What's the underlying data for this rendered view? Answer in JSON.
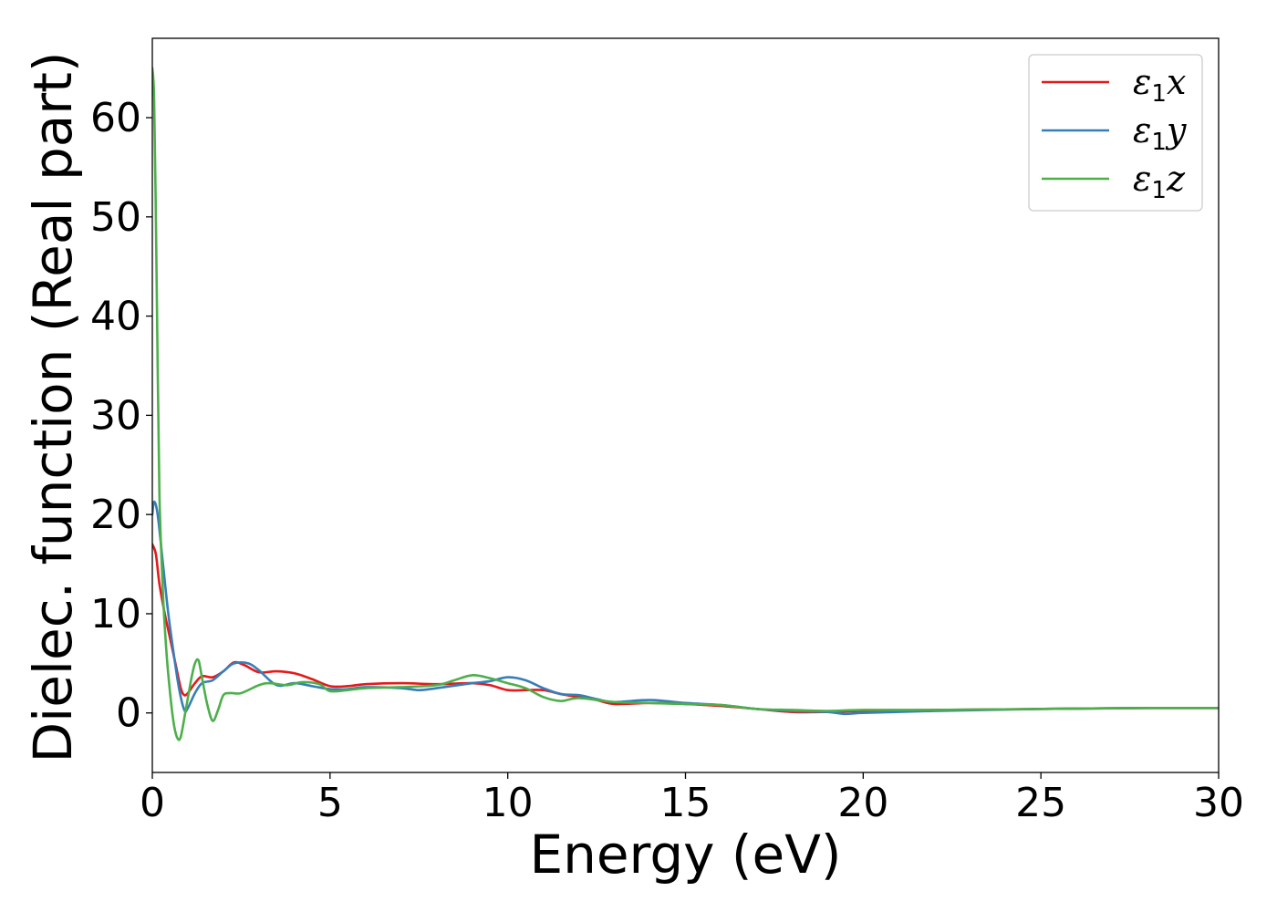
{
  "chart_data": {
    "type": "line",
    "title": "",
    "xlabel": "Energy (eV)",
    "ylabel": "Dielec. function (Real part)",
    "xlim": [
      0,
      30
    ],
    "ylim": [
      -6,
      68
    ],
    "xticks": [
      0,
      5,
      10,
      15,
      20,
      25,
      30
    ],
    "yticks": [
      0,
      10,
      20,
      30,
      40,
      50,
      60
    ],
    "grid": false,
    "legend_position": "top-right",
    "series": [
      {
        "name": "ε1x",
        "legend_base": "ε",
        "legend_sub": "1",
        "legend_suffix": "x",
        "color": "#e41a1c",
        "x": [
          0,
          0.1,
          0.2,
          0.35,
          0.5,
          0.65,
          0.8,
          0.9,
          1.0,
          1.2,
          1.4,
          1.7,
          2.0,
          2.3,
          2.6,
          3.0,
          3.5,
          4.0,
          4.5,
          5.0,
          5.5,
          6.0,
          7.0,
          8.0,
          9.0,
          9.5,
          10.0,
          10.5,
          11.0,
          11.5,
          12.0,
          12.5,
          13.0,
          14.0,
          15.0,
          16.0,
          17.0,
          18.0,
          19.0,
          20.0,
          22.0,
          25.0,
          28.0,
          30.0
        ],
        "y": [
          17.0,
          16.0,
          13.0,
          10.0,
          7.5,
          5.0,
          2.5,
          1.8,
          2.0,
          3.0,
          3.7,
          3.6,
          4.2,
          5.1,
          4.8,
          4.1,
          4.2,
          4.0,
          3.4,
          2.7,
          2.7,
          2.9,
          3.0,
          2.9,
          3.0,
          2.8,
          2.3,
          2.3,
          2.3,
          1.9,
          1.6,
          1.3,
          0.9,
          1.0,
          0.9,
          0.7,
          0.4,
          0.1,
          0.1,
          0.2,
          0.3,
          0.4,
          0.5,
          0.5
        ]
      },
      {
        "name": "ε1y",
        "legend_base": "ε",
        "legend_sub": "1",
        "legend_suffix": "y",
        "color": "#377eb8",
        "x": [
          0,
          0.05,
          0.15,
          0.3,
          0.45,
          0.6,
          0.75,
          0.9,
          1.0,
          1.2,
          1.4,
          1.7,
          2.0,
          2.3,
          2.7,
          3.0,
          3.5,
          4.0,
          4.5,
          5.0,
          5.5,
          6.0,
          7.0,
          7.5,
          8.0,
          9.0,
          9.5,
          10.0,
          10.5,
          11.0,
          11.5,
          12.0,
          12.5,
          13.0,
          14.0,
          15.0,
          16.0,
          17.0,
          18.0,
          19.0,
          19.5,
          20.0,
          22.0,
          25.0,
          28.0,
          30.0
        ],
        "y": [
          20.0,
          21.3,
          20.0,
          15.0,
          10.0,
          6.0,
          2.5,
          0.3,
          0.5,
          2.0,
          3.0,
          3.3,
          4.2,
          5.0,
          5.0,
          4.3,
          2.8,
          3.0,
          2.7,
          2.4,
          2.4,
          2.6,
          2.5,
          2.3,
          2.5,
          3.0,
          3.2,
          3.6,
          3.3,
          2.5,
          1.9,
          1.8,
          1.4,
          1.1,
          1.3,
          1.0,
          0.8,
          0.4,
          0.2,
          0.1,
          -0.1,
          0.0,
          0.2,
          0.4,
          0.5,
          0.5
        ]
      },
      {
        "name": "ε1z",
        "legend_base": "ε",
        "legend_sub": "1",
        "legend_suffix": "z",
        "color": "#4daf4a",
        "x": [
          0,
          0.05,
          0.1,
          0.15,
          0.2,
          0.3,
          0.4,
          0.5,
          0.6,
          0.7,
          0.8,
          0.95,
          1.1,
          1.2,
          1.3,
          1.4,
          1.55,
          1.7,
          1.85,
          2.0,
          2.2,
          2.5,
          3.0,
          3.3,
          3.8,
          4.2,
          4.7,
          5.0,
          5.5,
          6.0,
          7.0,
          8.0,
          8.5,
          9.0,
          9.5,
          10.0,
          10.5,
          11.0,
          11.5,
          12.0,
          13.0,
          14.0,
          15.0,
          16.0,
          17.0,
          18.0,
          19.0,
          20.0,
          22.0,
          25.0,
          28.0,
          30.0
        ],
        "y": [
          65.0,
          62.0,
          50.0,
          35.0,
          22.0,
          12.0,
          6.0,
          2.0,
          -1.0,
          -2.5,
          -2.4,
          0.5,
          3.5,
          5.0,
          5.3,
          3.5,
          0.8,
          -0.8,
          0.3,
          1.8,
          2.0,
          2.0,
          2.8,
          3.0,
          2.8,
          3.1,
          2.9,
          2.2,
          2.3,
          2.5,
          2.6,
          2.8,
          3.3,
          3.8,
          3.5,
          3.0,
          2.5,
          1.6,
          1.2,
          1.5,
          1.1,
          1.0,
          0.9,
          0.8,
          0.4,
          0.3,
          0.2,
          0.3,
          0.3,
          0.4,
          0.5,
          0.5
        ]
      }
    ]
  }
}
